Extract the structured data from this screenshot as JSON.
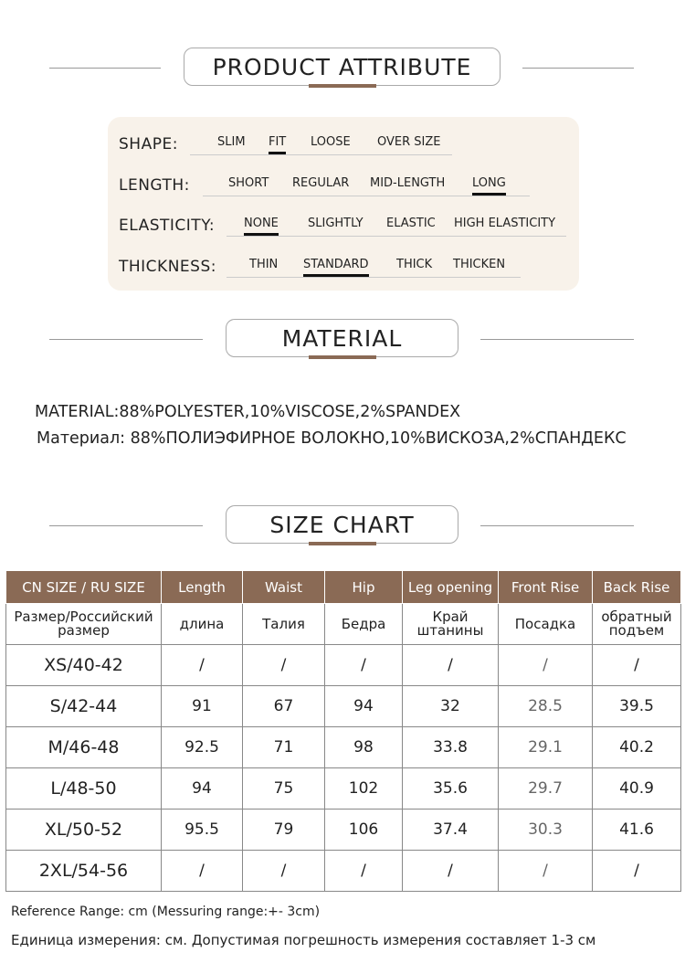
{
  "sections": {
    "attribute": "PRODUCT ATTRIBUTE",
    "material": "MATERIAL",
    "size_chart": "SIZE CHART"
  },
  "attributes": [
    {
      "label": "SHAPE:",
      "options": [
        "SLIM",
        "FIT",
        "LOOSE",
        "OVER SIZE"
      ],
      "selected": 1
    },
    {
      "label": "LENGTH:",
      "options": [
        "SHORT",
        "REGULAR",
        "MID-LENGTH",
        "LONG"
      ],
      "selected": 3
    },
    {
      "label": "ELASTICITY:",
      "options": [
        "NONE",
        "SLIGHTLY",
        "ELASTIC",
        "HIGH ELASTICITY"
      ],
      "selected": 0
    },
    {
      "label": "THICKNESS:",
      "options": [
        "THIN",
        "STANDARD",
        "THICK",
        "THICKEN"
      ],
      "selected": 1
    }
  ],
  "material": {
    "en": "MATERIAL:88%POLYESTER,10%VISCOSE,2%SPANDEX",
    "ru": "Материал: 88%ПОЛИЭФИРНОЕ ВОЛОКНО,10%ВИСКОЗА,2%СПАНДЕКС"
  },
  "table": {
    "headers": [
      "CN SIZE / RU SIZE",
      "Length",
      "Waist",
      "Hip",
      "Leg opening",
      "Front Rise",
      "Back Rise"
    ],
    "ru_headers": [
      "Размер/Российский размер",
      "длина",
      "Талия",
      "Бедра",
      "Край штанины",
      "Посадка",
      "обратный подъем"
    ],
    "rows": [
      [
        "XS/40-42",
        "/",
        "/",
        "/",
        "/",
        "/",
        "/"
      ],
      [
        "S/42-44",
        "91",
        "67",
        "94",
        "32",
        "28.5",
        "39.5"
      ],
      [
        "M/46-48",
        "92.5",
        "71",
        "98",
        "33.8",
        "29.1",
        "40.2"
      ],
      [
        "L/48-50",
        "94",
        "75",
        "102",
        "35.6",
        "29.7",
        "40.9"
      ],
      [
        "XL/50-52",
        "95.5",
        "79",
        "106",
        "37.4",
        "30.3",
        "41.6"
      ],
      [
        "2XL/54-56",
        "/",
        "/",
        "/",
        "/",
        "/",
        "/"
      ]
    ]
  },
  "notes": {
    "en": "Reference Range: cm (Messuring range:+- 3cm)",
    "ru": "Единица измерения: см. Допустимая погрешность измерения составляет 1-3 см"
  },
  "colors": {
    "accent": "#8a6a55",
    "panel": "#f8f2ea"
  }
}
